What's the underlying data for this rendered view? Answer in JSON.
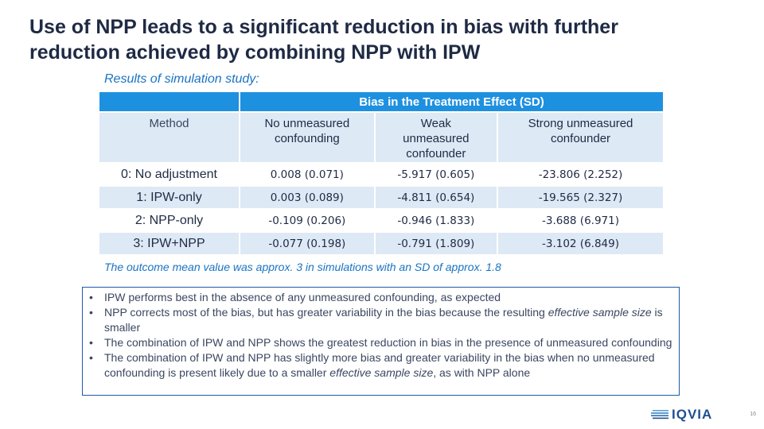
{
  "title": {
    "line1": "Use of NPP leads to a significant reduction in bias with further",
    "line2": "reduction achieved by combining NPP with IPW"
  },
  "subtitle": "Results of simulation study:",
  "table": {
    "group_header": "Bias in the Treatment Effect (SD)",
    "method_header": "Method",
    "columns": [
      {
        "line1": "No unmeasured",
        "line2": "confounding",
        "line3": ""
      },
      {
        "line1": "Weak",
        "line2": "unmeasured",
        "line3": "confounder"
      },
      {
        "line1": "Strong unmeasured",
        "line2": "confounder",
        "line3": ""
      }
    ],
    "rows": [
      {
        "method": "0: No adjustment",
        "values": [
          "0.008 (0.071)",
          "-5.917 (0.605)",
          "-23.806 (2.252)"
        ]
      },
      {
        "method": "1: IPW-only",
        "values": [
          "0.003 (0.089)",
          "-4.811 (0.654)",
          "-19.565 (2.327)"
        ]
      },
      {
        "method": "2: NPP-only",
        "values": [
          "-0.109 (0.206)",
          "-0.946 (1.833)",
          "-3.688 (6.971)"
        ]
      },
      {
        "method": "3: IPW+NPP",
        "values": [
          "-0.077 (0.198)",
          "-0.791 (1.809)",
          "-3.102 (6.849)"
        ]
      }
    ]
  },
  "note": "The outcome mean value was approx. 3 in simulations with an SD of approx. 1.8",
  "bullets": {
    "marker": "•",
    "b1": "IPW performs best in the absence of any unmeasured confounding, as expected",
    "b2_pre": "NPP corrects most of the bias, but has greater variability in the bias because the resulting ",
    "b2_em": "effective sample size",
    "b2_post": " is smaller",
    "b3": "The combination of IPW and NPP shows the greatest reduction in bias in the presence of unmeasured confounding",
    "b4_pre": "The combination of IPW and NPP has slightly more bias and greater variability in the bias when no unmeasured confounding is present likely due to a smaller ",
    "b4_em": "effective sample size",
    "b4_post": ", as with NPP alone"
  },
  "logo": {
    "text": "IQVIA",
    "icon": "iqvia-logo-icon",
    "color": "#1d4f91"
  },
  "page_number": "16",
  "colors": {
    "header_blue": "#1e90e0",
    "row_shade": "#dde9f5",
    "accent_text": "#1a73c2",
    "title": "#1f2a44"
  }
}
